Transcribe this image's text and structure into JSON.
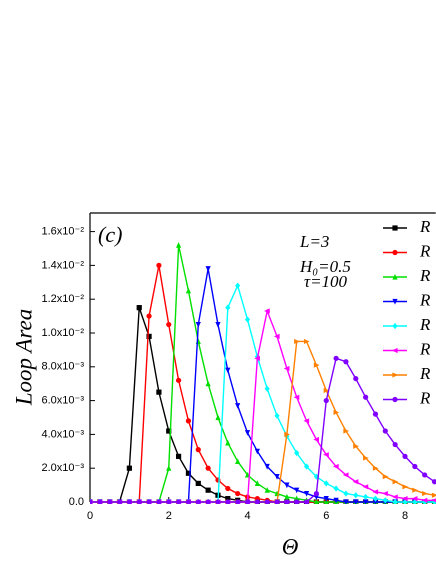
{
  "chart_data": {
    "type": "line",
    "y_label": "Loop Area",
    "x_label": "Θ",
    "annotations": [
      "(c)",
      "L=3",
      "H₀=0.5",
      "τ=100"
    ],
    "x": [
      0,
      0.25,
      0.5,
      0.75,
      1,
      1.25,
      1.5,
      1.75,
      2,
      2.25,
      2.5,
      2.75,
      3,
      3.25,
      3.5,
      3.75,
      4,
      4.25,
      4.5,
      4.75,
      5,
      5.25,
      5.5,
      5.75,
      6,
      6.25,
      6.5,
      6.75,
      7,
      7.25,
      7.5,
      7.75,
      8,
      8.25,
      8.5,
      8.75
    ],
    "series": [
      {
        "name": "R",
        "color": "#000000",
        "marker": "square",
        "values": [
          0,
          0,
          0,
          0,
          0.002,
          0.0115,
          0.0098,
          0.0065,
          0.0042,
          0.0027,
          0.0017,
          0.0011,
          0.0007,
          0.0004,
          0.0002,
          0.0001,
          0,
          0,
          0,
          0,
          0,
          0,
          0,
          0,
          0,
          0,
          0,
          0,
          0,
          0,
          0,
          0,
          0,
          0,
          0,
          0
        ]
      },
      {
        "name": "R",
        "color": "#ff0000",
        "marker": "circle",
        "values": [
          0,
          0,
          0,
          0,
          0,
          0,
          0.011,
          0.014,
          0.0105,
          0.0072,
          0.0048,
          0.0031,
          0.002,
          0.0013,
          0.0008,
          0.0005,
          0.0003,
          0.0002,
          0.0001,
          0,
          0,
          0,
          0,
          0,
          0,
          0,
          0,
          0,
          0,
          0,
          0,
          0,
          0,
          0,
          0,
          0
        ]
      },
      {
        "name": "R",
        "color": "#00e000",
        "marker": "triangle-up",
        "values": [
          0,
          0,
          0,
          0,
          0,
          0,
          0,
          0,
          0.002,
          0.0152,
          0.0125,
          0.0095,
          0.007,
          0.005,
          0.0035,
          0.0024,
          0.0016,
          0.0011,
          0.0007,
          0.0005,
          0.0003,
          0.0002,
          0.0001,
          0,
          0,
          0,
          0,
          0,
          0,
          0,
          0,
          0,
          0,
          0,
          0,
          0
        ]
      },
      {
        "name": "R",
        "color": "#0000ff",
        "marker": "triangle-down",
        "values": [
          0,
          0,
          0,
          0,
          0,
          0,
          0,
          0,
          0,
          0,
          0,
          0.0105,
          0.0138,
          0.0105,
          0.0078,
          0.0057,
          0.0041,
          0.003,
          0.0021,
          0.0015,
          0.001,
          0.0007,
          0.0005,
          0.0003,
          0.0002,
          0.0001,
          0,
          0,
          0,
          0,
          0,
          0,
          0,
          0,
          0,
          0
        ]
      },
      {
        "name": "R",
        "color": "#00ffff",
        "marker": "diamond",
        "values": [
          0,
          0,
          0,
          0,
          0,
          0,
          0,
          0,
          0,
          0,
          0,
          0,
          0,
          0,
          0.0115,
          0.0128,
          0.0108,
          0.0086,
          0.0067,
          0.0051,
          0.0039,
          0.0029,
          0.0021,
          0.0015,
          0.0011,
          0.0008,
          0.0005,
          0.0004,
          0.0003,
          0.0002,
          0.0001,
          0,
          0,
          0,
          0,
          0
        ]
      },
      {
        "name": "R",
        "color": "#ff00ff",
        "marker": "triangle-left",
        "values": [
          0,
          0,
          0,
          0,
          0,
          0,
          0,
          0,
          0,
          0,
          0,
          0,
          0,
          0,
          0,
          0,
          0,
          0.0085,
          0.0113,
          0.0098,
          0.0079,
          0.0062,
          0.0048,
          0.0037,
          0.0028,
          0.0021,
          0.0016,
          0.0012,
          0.0009,
          0.0006,
          0.0005,
          0.0003,
          0.0002,
          0.0002,
          0.0001,
          0.0001
        ]
      },
      {
        "name": "R",
        "color": "#ff8000",
        "marker": "triangle-right",
        "values": [
          0,
          0,
          0,
          0,
          0,
          0,
          0,
          0,
          0,
          0,
          0,
          0,
          0,
          0,
          0,
          0,
          0,
          0,
          0,
          0,
          0.004,
          0.0095,
          0.0095,
          0.0081,
          0.0066,
          0.0053,
          0.0042,
          0.0033,
          0.0026,
          0.002,
          0.0015,
          0.0012,
          0.0009,
          0.0007,
          0.0005,
          0.0004
        ]
      },
      {
        "name": "R",
        "color": "#8000ff",
        "marker": "circle",
        "values": [
          0,
          0,
          0,
          0,
          0,
          0,
          0,
          0,
          0,
          0,
          0,
          0,
          0,
          0,
          0,
          0,
          0,
          0,
          0,
          0,
          0,
          0,
          0,
          0.0005,
          0.006,
          0.0085,
          0.0083,
          0.0073,
          0.0062,
          0.0052,
          0.0042,
          0.0034,
          0.0027,
          0.0021,
          0.0016,
          0.0012
        ]
      }
    ],
    "xlim": [
      0,
      8.78
    ],
    "xticks": [
      0,
      2,
      4,
      6,
      8
    ],
    "ylim": [
      0,
      0.0171
    ],
    "yticks": [
      {
        "value": 0,
        "label": "0.0"
      },
      {
        "value": 0.002,
        "label": "2.0x10⁻³"
      },
      {
        "value": 0.004,
        "label": "4.0x10⁻³"
      },
      {
        "value": 0.006,
        "label": "6.0x10⁻³"
      },
      {
        "value": 0.008,
        "label": "8.0x10⁻³"
      },
      {
        "value": 0.01,
        "label": "1.0x10⁻²"
      },
      {
        "value": 0.012,
        "label": "1.2x10⁻²"
      },
      {
        "value": 0.014,
        "label": "1.4x10⁻²"
      },
      {
        "value": 0.016,
        "label": "1.6x10⁻²"
      }
    ],
    "legend": "upper right",
    "grid": false
  }
}
